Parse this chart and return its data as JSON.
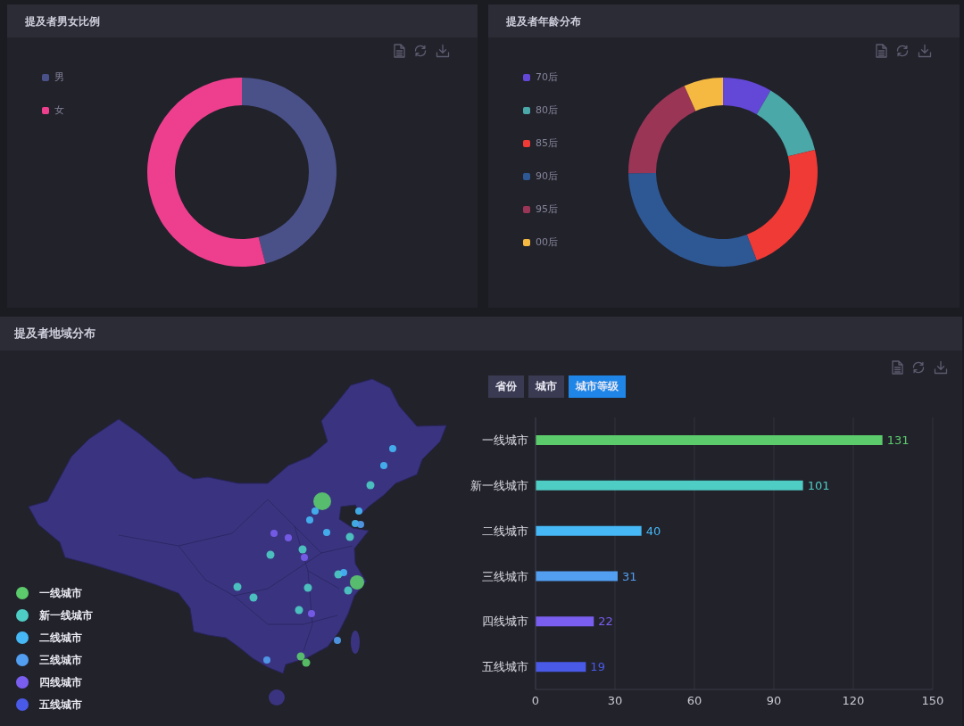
{
  "chart_data": [
    {
      "type": "donut",
      "title": "提及者男女比例",
      "categories": [
        "男",
        "女"
      ],
      "values": [
        46,
        54
      ],
      "colors": [
        "#4a5189",
        "#ee3f8e"
      ],
      "legend": "top left"
    },
    {
      "type": "donut",
      "title": "提及者年龄分布",
      "categories": [
        "70后",
        "80后",
        "85后",
        "90后",
        "95后",
        "00后"
      ],
      "values": [
        8.4,
        12.8,
        23.0,
        30.6,
        18.5,
        6.7
      ],
      "colors": [
        "#6347d6",
        "#4aa8a8",
        "#ef3a35",
        "#2e5894",
        "#9a3555",
        "#f5b942"
      ],
      "legend": "top left"
    },
    {
      "type": "other",
      "title": "提及者地域分布",
      "categories": [
        "一线城市",
        "新一线城市",
        "二线城市",
        "三线城市",
        "四线城市",
        "五线城市"
      ],
      "colors": [
        "#5ccb6c",
        "#4ecdc4",
        "#45b8f5",
        "#529ef0",
        "#7a5ef0",
        "#4a5ae8"
      ]
    },
    {
      "type": "bar",
      "orientation": "horizontal",
      "categories": [
        "一线城市",
        "新一线城市",
        "二线城市",
        "三线城市",
        "四线城市",
        "五线城市"
      ],
      "values": [
        131,
        101,
        40,
        31,
        22,
        19
      ],
      "colors": [
        "#5ccb6c",
        "#4ecdc4",
        "#45b8f5",
        "#529ef0",
        "#7a5ef0",
        "#4a5ae8"
      ],
      "xlim": [
        0,
        150
      ],
      "xticks": [
        0,
        30,
        60,
        90,
        120,
        150
      ],
      "grid": "x",
      "data_labels": true,
      "annotations": [
        "省份",
        "城市",
        "城市等级"
      ]
    }
  ]
}
